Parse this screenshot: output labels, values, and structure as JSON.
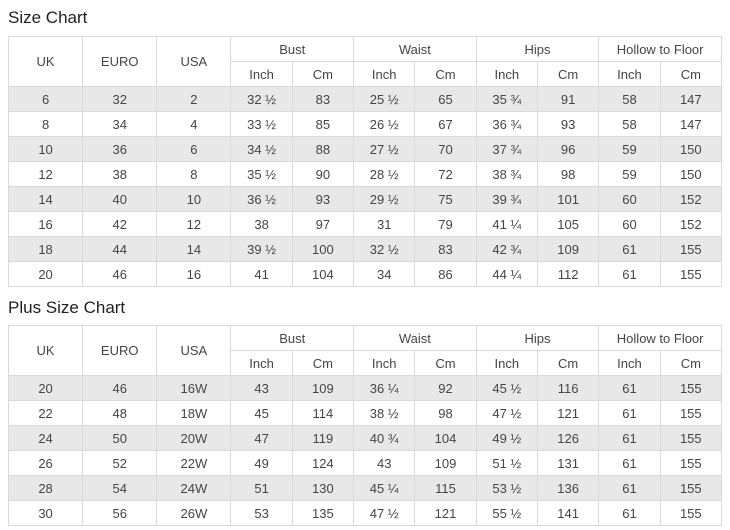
{
  "page": {
    "background": "#ffffff"
  },
  "colors": {
    "row_shade": "#e8e8e8",
    "border": "#d9d9d9",
    "cell_text": "#454545",
    "title_text": "#1f1f1f"
  },
  "chart_data": [
    {
      "type": "table",
      "title": "Size Chart",
      "base_headers": [
        "UK",
        "EURO",
        "USA"
      ],
      "column_groups": [
        "Bust",
        "Waist",
        "Hips",
        "Hollow to Floor"
      ],
      "unit_headers": [
        "Inch",
        "Cm"
      ],
      "rows": [
        [
          "6",
          "32",
          "2",
          "32 ½",
          "83",
          "25 ½",
          "65",
          "35 ¾",
          "91",
          "58",
          "147"
        ],
        [
          "8",
          "34",
          "4",
          "33 ½",
          "85",
          "26 ½",
          "67",
          "36 ¾",
          "93",
          "58",
          "147"
        ],
        [
          "10",
          "36",
          "6",
          "34 ½",
          "88",
          "27 ½",
          "70",
          "37 ¾",
          "96",
          "59",
          "150"
        ],
        [
          "12",
          "38",
          "8",
          "35 ½",
          "90",
          "28 ½",
          "72",
          "38 ¾",
          "98",
          "59",
          "150"
        ],
        [
          "14",
          "40",
          "10",
          "36 ½",
          "93",
          "29 ½",
          "75",
          "39 ¾",
          "101",
          "60",
          "152"
        ],
        [
          "16",
          "42",
          "12",
          "38",
          "97",
          "31",
          "79",
          "41 ¼",
          "105",
          "60",
          "152"
        ],
        [
          "18",
          "44",
          "14",
          "39 ½",
          "100",
          "32 ½",
          "83",
          "42 ¾",
          "109",
          "61",
          "155"
        ],
        [
          "20",
          "46",
          "16",
          "41",
          "104",
          "34",
          "86",
          "44 ¼",
          "112",
          "61",
          "155"
        ]
      ]
    },
    {
      "type": "table",
      "title": "Plus Size Chart",
      "base_headers": [
        "UK",
        "EURO",
        "USA"
      ],
      "column_groups": [
        "Bust",
        "Waist",
        "Hips",
        "Hollow to Floor"
      ],
      "unit_headers": [
        "Inch",
        "Cm"
      ],
      "rows": [
        [
          "20",
          "46",
          "16W",
          "43",
          "109",
          "36 ¼",
          "92",
          "45 ½",
          "116",
          "61",
          "155"
        ],
        [
          "22",
          "48",
          "18W",
          "45",
          "114",
          "38 ½",
          "98",
          "47 ½",
          "121",
          "61",
          "155"
        ],
        [
          "24",
          "50",
          "20W",
          "47",
          "119",
          "40 ¾",
          "104",
          "49 ½",
          "126",
          "61",
          "155"
        ],
        [
          "26",
          "52",
          "22W",
          "49",
          "124",
          "43",
          "109",
          "51 ½",
          "131",
          "61",
          "155"
        ],
        [
          "28",
          "54",
          "24W",
          "51",
          "130",
          "45 ¼",
          "115",
          "53 ½",
          "136",
          "61",
          "155"
        ],
        [
          "30",
          "56",
          "26W",
          "53",
          "135",
          "47 ½",
          "121",
          "55 ½",
          "141",
          "61",
          "155"
        ]
      ]
    }
  ]
}
